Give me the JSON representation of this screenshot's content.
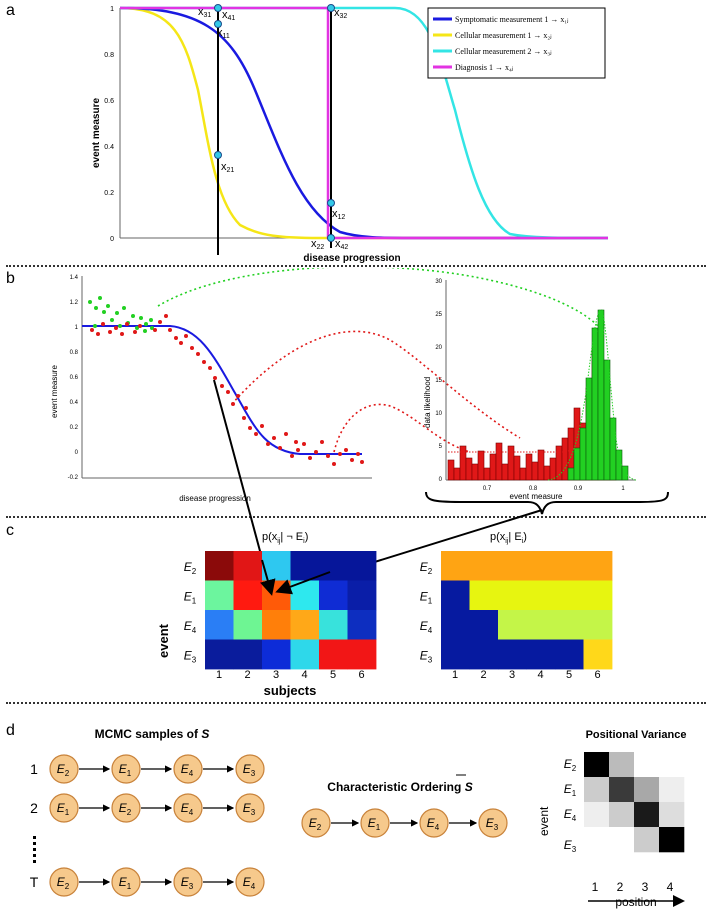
{
  "panels": {
    "a": "a",
    "b": "b",
    "c": "c",
    "d": "d"
  },
  "panel_a": {
    "y_label": "event measure",
    "x_label": "disease progression",
    "y_ticks": [
      "1",
      "0.8",
      "0.6",
      "0.4",
      "0.2",
      "0"
    ],
    "legend": [
      {
        "label": "Symptomatic measurement 1 → x₁ⱼ",
        "color": "#1a1ae0"
      },
      {
        "label": "Cellular measurement 1 → x₂ⱼ",
        "color": "#f5e617"
      },
      {
        "label": "Cellular measurement 2 → x₃ⱼ",
        "color": "#33e5e5"
      },
      {
        "label": "Diagnosis 1 → x₄ⱼ",
        "color": "#e233e2"
      }
    ],
    "points": {
      "x31": "x",
      "x31_sub": "31",
      "x41": "x",
      "x41_sub": "41",
      "x11": "x",
      "x11_sub": "11",
      "x21": "x",
      "x21_sub": "21",
      "x32": "x",
      "x32_sub": "32",
      "x12": "x",
      "x12_sub": "12",
      "x22": "x",
      "x22_sub": "22",
      "x42": "x",
      "x42_sub": "42"
    }
  },
  "panel_b": {
    "y_label": "event measure",
    "x_label": "disease progression",
    "y_ticks": [
      "1.4",
      "1.2",
      "1",
      "0.8",
      "0.6",
      "0.4",
      "0.2",
      "0",
      "-0.2"
    ],
    "hist_y_label": "data likelihood",
    "hist_x_label": "event measure",
    "hist_y_ticks": [
      "30",
      "25",
      "20",
      "15",
      "10",
      "5",
      "0"
    ],
    "hist_x_ticks": [
      "0.7",
      "0.8",
      "0.9",
      "1"
    ]
  },
  "panel_c": {
    "left_title_pre": "p(x",
    "left_title_sub": "ij",
    "left_title_post": "| ¬ E",
    "left_title_sub2": "i",
    "left_title_end": ")",
    "right_title_pre": "p(x",
    "right_title_sub": "ij",
    "right_title_post": "| E",
    "right_title_sub2": "i",
    "right_title_end": ")",
    "y_label": "event",
    "x_label": "subjects",
    "rows": [
      {
        "e": "E",
        "sub": "2"
      },
      {
        "e": "E",
        "sub": "1"
      },
      {
        "e": "E",
        "sub": "4"
      },
      {
        "e": "E",
        "sub": "3"
      }
    ],
    "columns": [
      "1",
      "2",
      "3",
      "4",
      "5",
      "6"
    ],
    "left_colors": [
      [
        "#8b0a0a",
        "#e11616",
        "#2ec8f0",
        "#06169a",
        "#06169a",
        "#06169a"
      ],
      [
        "#6cf59e",
        "#ff1a10",
        "#ff5a08",
        "#2ee8ee",
        "#0f2cd4",
        "#0a1ea8"
      ],
      [
        "#2a7ef5",
        "#6ef593",
        "#ff7f0a",
        "#ffa818",
        "#38e2dc",
        "#0d2ec0"
      ],
      [
        "#0a1c9c",
        "#0a1c9c",
        "#0d2cd8",
        "#2ed8ea",
        "#f21616",
        "#f21616"
      ]
    ],
    "right_colors": [
      [
        "#ffa413",
        "#ffa413",
        "#ffa413",
        "#ffa413",
        "#ffa413",
        "#ffa413"
      ],
      [
        "#061aa0",
        "#e7f510",
        "#e7f510",
        "#e7f510",
        "#e7f510",
        "#e7f510"
      ],
      [
        "#061aa0",
        "#061aa0",
        "#c4f548",
        "#c4f548",
        "#c4f548",
        "#c4f548"
      ],
      [
        "#061aa0",
        "#061aa0",
        "#061aa0",
        "#061aa0",
        "#061aa0",
        "#ffd81a"
      ]
    ]
  },
  "panel_d": {
    "mcmc_title_pre": "MCMC samples of ",
    "mcmc_title_var": "S",
    "char_title_pre": "Characteristic Ordering ",
    "char_title_var": "S",
    "pos_title": "Positional Variance",
    "pos_y_label": "event",
    "pos_x_label": "position",
    "chains": [
      {
        "label": "1",
        "nodes": [
          {
            "e": "E",
            "sub": "2"
          },
          {
            "e": "E",
            "sub": "1"
          },
          {
            "e": "E",
            "sub": "4"
          },
          {
            "e": "E",
            "sub": "3"
          }
        ]
      },
      {
        "label": "2",
        "nodes": [
          {
            "e": "E",
            "sub": "1"
          },
          {
            "e": "E",
            "sub": "2"
          },
          {
            "e": "E",
            "sub": "4"
          },
          {
            "e": "E",
            "sub": "3"
          }
        ]
      },
      {
        "label": "T",
        "nodes": [
          {
            "e": "E",
            "sub": "2"
          },
          {
            "e": "E",
            "sub": "1"
          },
          {
            "e": "E",
            "sub": "3"
          },
          {
            "e": "E",
            "sub": "4"
          }
        ]
      }
    ],
    "characteristic": [
      {
        "e": "E",
        "sub": "2"
      },
      {
        "e": "E",
        "sub": "1"
      },
      {
        "e": "E",
        "sub": "4"
      },
      {
        "e": "E",
        "sub": "3"
      }
    ],
    "pos_rows": [
      {
        "e": "E",
        "sub": "2"
      },
      {
        "e": "E",
        "sub": "1"
      },
      {
        "e": "E",
        "sub": "4"
      },
      {
        "e": "E",
        "sub": "3"
      }
    ],
    "pos_cols": [
      "1",
      "2",
      "3",
      "4"
    ],
    "pos_colors": [
      [
        "#000000",
        "#bbbbbb",
        "#ffffff",
        "#ffffff"
      ],
      [
        "#cccccc",
        "#3a3a3a",
        "#a8a8a8",
        "#eeeeee"
      ],
      [
        "#eeeeee",
        "#cccccc",
        "#1a1a1a",
        "#dddddd"
      ],
      [
        "#ffffff",
        "#ffffff",
        "#cccccc",
        "#000000"
      ]
    ],
    "node_fill": "#f6c98c",
    "node_stroke": "#c8823a"
  }
}
